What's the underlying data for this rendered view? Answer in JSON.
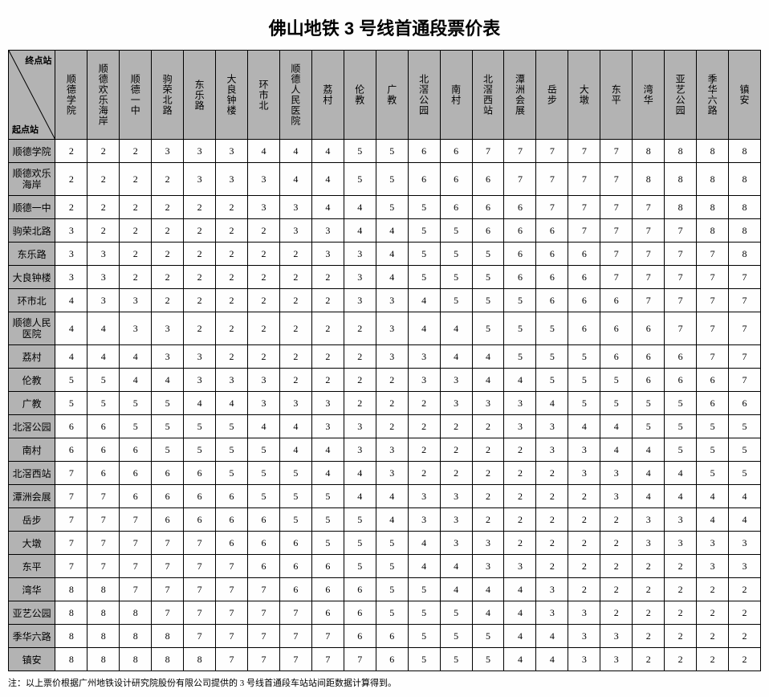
{
  "title": "佛山地铁 3 号线首通段票价表",
  "corner": {
    "top": "终点站",
    "bottom": "起点站"
  },
  "stations": [
    "顺德学院",
    "顺德欢乐海岸",
    "顺德一中",
    "驹荣北路",
    "东乐路",
    "大良钟楼",
    "环市北",
    "顺德人民医院",
    "荔村",
    "伦教",
    "广教",
    "北滘公园",
    "南村",
    "北滘西站",
    "潭洲会展",
    "岳步",
    "大墩",
    "东平",
    "湾华",
    "亚艺公园",
    "季华六路",
    "镇安"
  ],
  "rowLabels": [
    "顺德学院",
    "顺德欢乐\n海岸",
    "顺德一中",
    "驹荣北路",
    "东乐路",
    "大良钟楼",
    "环市北",
    "顺德人民\n医院",
    "荔村",
    "伦教",
    "广教",
    "北滘公园",
    "南村",
    "北滘西站",
    "潭洲会展",
    "岳步",
    "大墩",
    "东平",
    "湾华",
    "亚艺公园",
    "季华六路",
    "镇安"
  ],
  "fares": [
    [
      2,
      2,
      2,
      3,
      3,
      3,
      4,
      4,
      4,
      5,
      5,
      6,
      6,
      7,
      7,
      7,
      7,
      7,
      8,
      8,
      8,
      8
    ],
    [
      2,
      2,
      2,
      2,
      3,
      3,
      3,
      4,
      4,
      5,
      5,
      6,
      6,
      6,
      7,
      7,
      7,
      7,
      8,
      8,
      8,
      8
    ],
    [
      2,
      2,
      2,
      2,
      2,
      2,
      3,
      3,
      4,
      4,
      5,
      5,
      6,
      6,
      6,
      7,
      7,
      7,
      7,
      8,
      8,
      8
    ],
    [
      3,
      2,
      2,
      2,
      2,
      2,
      2,
      3,
      3,
      4,
      4,
      5,
      5,
      6,
      6,
      6,
      7,
      7,
      7,
      7,
      8,
      8
    ],
    [
      3,
      3,
      2,
      2,
      2,
      2,
      2,
      2,
      3,
      3,
      4,
      5,
      5,
      5,
      6,
      6,
      6,
      7,
      7,
      7,
      7,
      8
    ],
    [
      3,
      3,
      2,
      2,
      2,
      2,
      2,
      2,
      2,
      3,
      4,
      5,
      5,
      5,
      6,
      6,
      6,
      7,
      7,
      7,
      7,
      7
    ],
    [
      4,
      3,
      3,
      2,
      2,
      2,
      2,
      2,
      2,
      3,
      3,
      4,
      5,
      5,
      5,
      6,
      6,
      6,
      7,
      7,
      7,
      7
    ],
    [
      4,
      4,
      3,
      3,
      2,
      2,
      2,
      2,
      2,
      2,
      3,
      4,
      4,
      5,
      5,
      5,
      6,
      6,
      6,
      7,
      7,
      7
    ],
    [
      4,
      4,
      4,
      3,
      3,
      2,
      2,
      2,
      2,
      2,
      3,
      3,
      4,
      4,
      5,
      5,
      5,
      6,
      6,
      6,
      7,
      7
    ],
    [
      5,
      5,
      4,
      4,
      3,
      3,
      3,
      2,
      2,
      2,
      2,
      3,
      3,
      4,
      4,
      5,
      5,
      5,
      6,
      6,
      6,
      7
    ],
    [
      5,
      5,
      5,
      5,
      4,
      4,
      3,
      3,
      3,
      2,
      2,
      2,
      3,
      3,
      3,
      4,
      5,
      5,
      5,
      5,
      6,
      6
    ],
    [
      6,
      6,
      5,
      5,
      5,
      5,
      4,
      4,
      3,
      3,
      2,
      2,
      2,
      2,
      3,
      3,
      4,
      4,
      5,
      5,
      5,
      5
    ],
    [
      6,
      6,
      6,
      5,
      5,
      5,
      5,
      4,
      4,
      3,
      3,
      2,
      2,
      2,
      2,
      3,
      3,
      4,
      4,
      5,
      5,
      5
    ],
    [
      7,
      6,
      6,
      6,
      6,
      5,
      5,
      5,
      4,
      4,
      3,
      2,
      2,
      2,
      2,
      2,
      3,
      3,
      4,
      4,
      5,
      5
    ],
    [
      7,
      7,
      6,
      6,
      6,
      6,
      5,
      5,
      5,
      4,
      4,
      3,
      3,
      2,
      2,
      2,
      2,
      3,
      4,
      4,
      4,
      4
    ],
    [
      7,
      7,
      7,
      6,
      6,
      6,
      6,
      5,
      5,
      5,
      4,
      3,
      3,
      2,
      2,
      2,
      2,
      2,
      3,
      3,
      4,
      4
    ],
    [
      7,
      7,
      7,
      7,
      7,
      6,
      6,
      6,
      5,
      5,
      5,
      4,
      3,
      3,
      2,
      2,
      2,
      2,
      3,
      3,
      3,
      3
    ],
    [
      7,
      7,
      7,
      7,
      7,
      7,
      6,
      6,
      6,
      5,
      5,
      4,
      4,
      3,
      3,
      2,
      2,
      2,
      2,
      2,
      3,
      3
    ],
    [
      8,
      8,
      7,
      7,
      7,
      7,
      7,
      6,
      6,
      6,
      5,
      5,
      4,
      4,
      4,
      3,
      2,
      2,
      2,
      2,
      2,
      2
    ],
    [
      8,
      8,
      8,
      7,
      7,
      7,
      7,
      7,
      6,
      6,
      5,
      5,
      5,
      4,
      4,
      3,
      3,
      2,
      2,
      2,
      2,
      2
    ],
    [
      8,
      8,
      8,
      8,
      7,
      7,
      7,
      7,
      7,
      6,
      6,
      5,
      5,
      5,
      4,
      4,
      3,
      3,
      2,
      2,
      2,
      2
    ],
    [
      8,
      8,
      8,
      8,
      8,
      7,
      7,
      7,
      7,
      7,
      6,
      5,
      5,
      5,
      4,
      4,
      3,
      3,
      2,
      2,
      2,
      2
    ]
  ],
  "footnote": "注：以上票价根据广州地铁设计研究院股份有限公司提供的 3 号线首通段车站站间距数据计算得到。",
  "colors": {
    "header_bg": "#b3b3b3",
    "border": "#000000",
    "background": "#fefefe"
  }
}
